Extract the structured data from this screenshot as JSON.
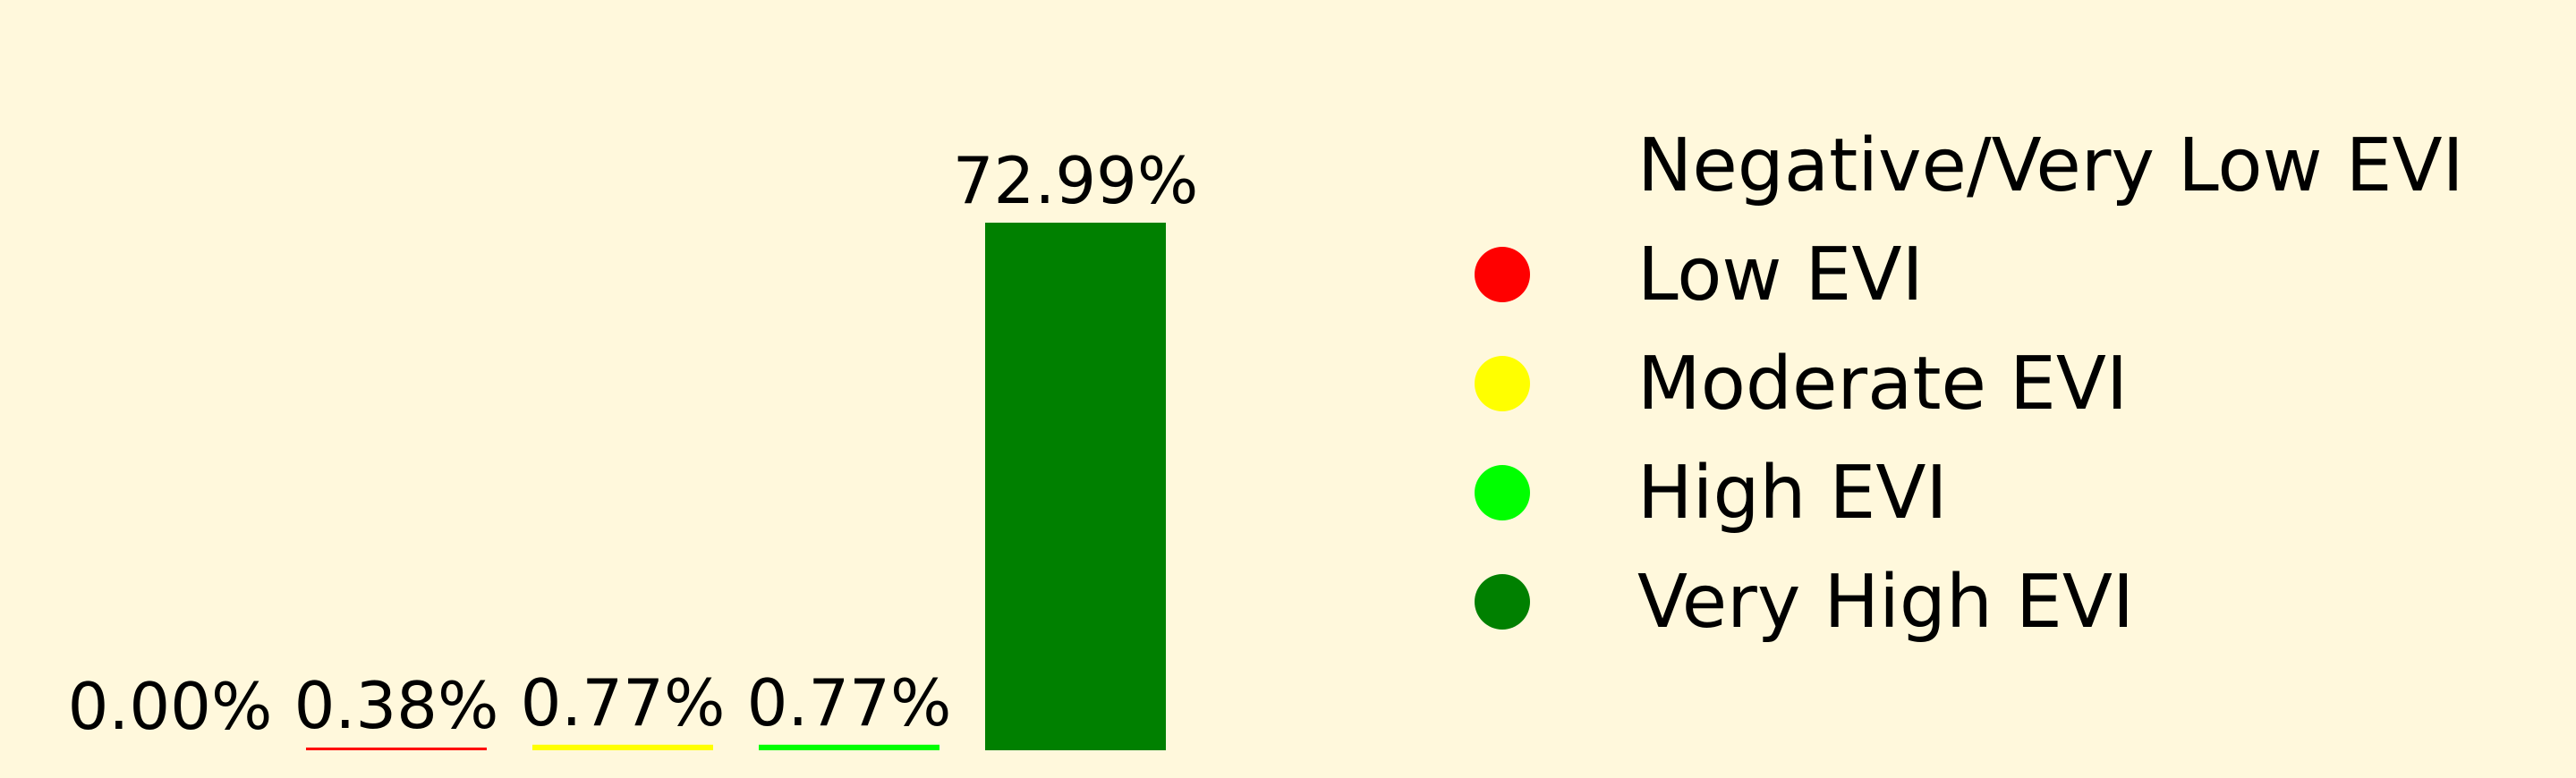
{
  "chart_data": {
    "type": "bar",
    "title": "",
    "xlabel": "",
    "ylabel": "",
    "ylim": [
      0,
      72.99
    ],
    "grid": false,
    "legend_position": "right",
    "background_color": "#fff8dc",
    "categories": [
      "Negative/Very Low EVI",
      "Low EVI",
      "Moderate EVI",
      "High EVI",
      "Very High EVI"
    ],
    "values": [
      0.0,
      0.38,
      0.77,
      0.77,
      72.99
    ],
    "data_labels": [
      "0.00%",
      "0.38%",
      "0.77%",
      "0.77%",
      "72.99%"
    ],
    "colors": [
      "#fff8dc",
      "#ff0000",
      "#ffff00",
      "#00ff00",
      "#008000"
    ],
    "legend": [
      {
        "label": "Negative/Very Low EVI",
        "color": "#fff8dc"
      },
      {
        "label": "Low EVI",
        "color": "#ff0000"
      },
      {
        "label": "Moderate EVI",
        "color": "#ffff00"
      },
      {
        "label": "High EVI",
        "color": "#00ff00"
      },
      {
        "label": "Very High EVI",
        "color": "#008000"
      }
    ]
  }
}
